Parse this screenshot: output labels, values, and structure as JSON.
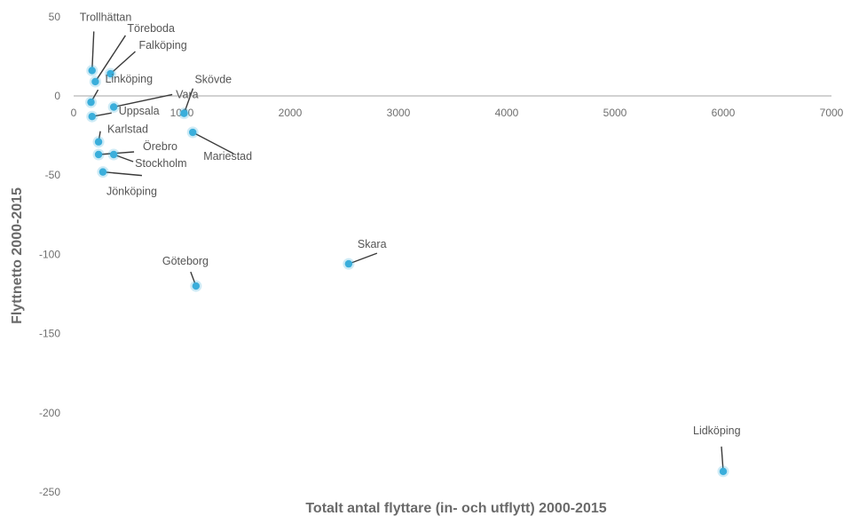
{
  "chart_data": {
    "type": "scatter",
    "title": "",
    "xlabel": "Totalt antal flyttare (in- och utflytt) 2000-2015",
    "ylabel": "Flyttnetto 2000-2015",
    "xlim": [
      0,
      7000
    ],
    "ylim": [
      -250,
      50
    ],
    "x_ticks": [
      "0",
      "1000",
      "2000",
      "3000",
      "4000",
      "5000",
      "6000",
      "7000"
    ],
    "y_ticks": [
      "50",
      "0",
      "-50",
      "-100",
      "-150",
      "-200",
      "-250"
    ],
    "grid": false,
    "point_color": "#3aaedb",
    "label_color": "#555555",
    "points": [
      {
        "label": "Trollhättan",
        "x": 170,
        "y": 16
      },
      {
        "label": "Töreboda",
        "x": 200,
        "y": 9
      },
      {
        "label": "Falköping",
        "x": 340,
        "y": 14
      },
      {
        "label": "Linköping",
        "x": 160,
        "y": -4
      },
      {
        "label": "Vara",
        "x": 370,
        "y": -7
      },
      {
        "label": "Uppsala",
        "x": 170,
        "y": -13
      },
      {
        "label": "Skövde",
        "x": 1020,
        "y": -11
      },
      {
        "label": "Karlstad",
        "x": 230,
        "y": -29
      },
      {
        "label": "Örebro",
        "x": 230,
        "y": -37
      },
      {
        "label": "Stockholm",
        "x": 370,
        "y": -37
      },
      {
        "label": "Mariestad",
        "x": 1100,
        "y": -23
      },
      {
        "label": "Jönköping",
        "x": 270,
        "y": -48
      },
      {
        "label": "Göteborg",
        "x": 1130,
        "y": -120
      },
      {
        "label": "Skara",
        "x": 2540,
        "y": -106
      },
      {
        "label": "Lidköping",
        "x": 6000,
        "y": -237
      }
    ]
  }
}
